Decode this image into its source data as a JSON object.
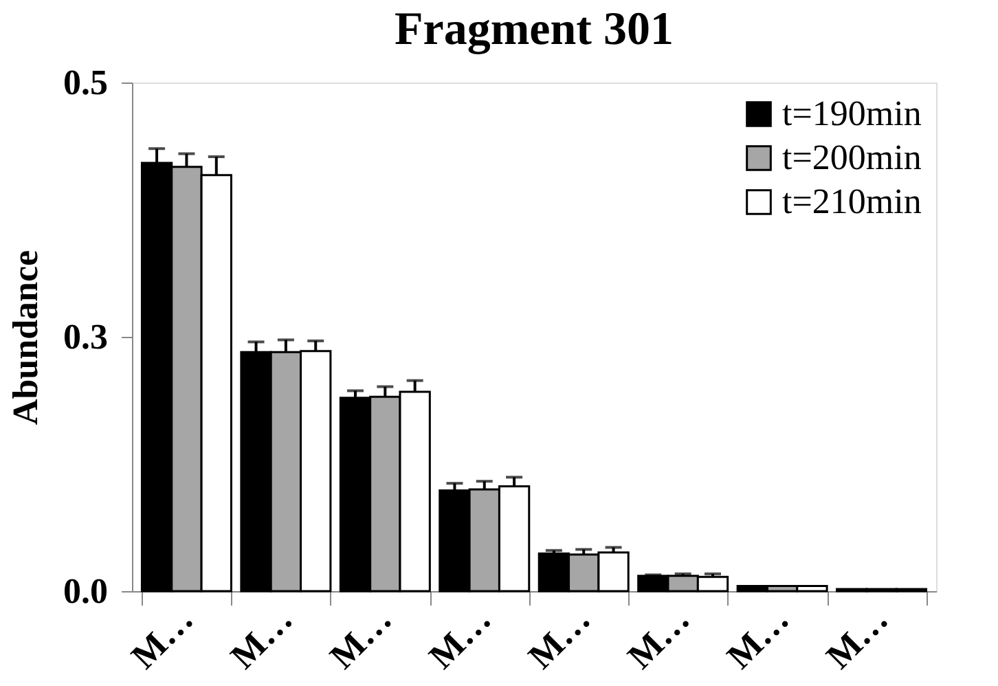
{
  "chart_data": {
    "type": "bar",
    "title": "Fragment 301",
    "ylabel": "Abundance",
    "categories": [
      "M…",
      "M…",
      "M…",
      "M…",
      "M…",
      "M…",
      "M…",
      "M…"
    ],
    "series": [
      {
        "name": "t=190min",
        "color": "#000000",
        "values": [
          0.421,
          0.235,
          0.19,
          0.099,
          0.037,
          0.015,
          0.005,
          0.002
        ],
        "errors": [
          [
            0.421,
            0.435
          ],
          [
            0.235,
            0.245
          ],
          [
            0.19,
            0.197
          ],
          [
            0.099,
            0.106
          ],
          [
            0.037,
            0.04
          ],
          [
            0.015,
            0.016
          ],
          null,
          null
        ]
      },
      {
        "name": "t=200min",
        "color": "#a6a6a6",
        "values": [
          0.417,
          0.235,
          0.191,
          0.1,
          0.036,
          0.015,
          0.005,
          0.002
        ],
        "errors": [
          [
            0.417,
            0.43
          ],
          [
            0.235,
            0.247
          ],
          [
            0.191,
            0.201
          ],
          [
            0.1,
            0.108
          ],
          [
            0.036,
            0.041
          ],
          [
            0.015,
            0.017
          ],
          null,
          null
        ]
      },
      {
        "name": "t=210min",
        "color": "#ffffff",
        "values": [
          0.409,
          0.236,
          0.196,
          0.103,
          0.038,
          0.014,
          0.005,
          0.002
        ],
        "errors": [
          [
            0.409,
            0.427
          ],
          [
            0.236,
            0.246
          ],
          [
            0.196,
            0.207
          ],
          [
            0.103,
            0.112
          ],
          [
            0.038,
            0.043
          ],
          [
            0.014,
            0.017
          ],
          null,
          null
        ]
      }
    ],
    "ylim": [
      0,
      0.5
    ],
    "yticks": [
      {
        "value": 0,
        "label": "0.0"
      },
      {
        "value": 0.25,
        "label": "0.3"
      },
      {
        "value": 0.5,
        "label": "0.5"
      }
    ],
    "grid": false,
    "legend": "top right"
  }
}
